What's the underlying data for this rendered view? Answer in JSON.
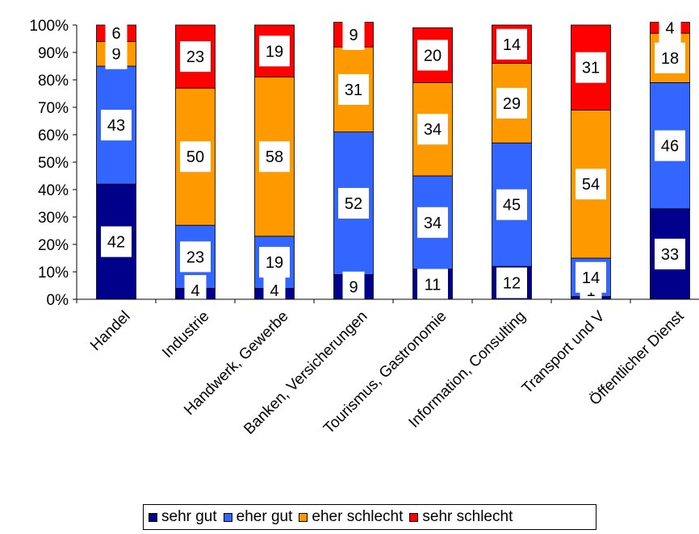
{
  "chart_data": {
    "type": "bar",
    "stacked": true,
    "title": "",
    "xlabel": "",
    "ylabel": "",
    "ylim": [
      0,
      100
    ],
    "yticks": [
      "0%",
      "10%",
      "20%",
      "30%",
      "40%",
      "50%",
      "60%",
      "70%",
      "80%",
      "90%",
      "100%"
    ],
    "categories": [
      "Handel",
      "Industrie",
      "Handwerk, Gewerbe",
      "Banken, Versicherungen",
      "Tourismus, Gastronomie",
      "Information, Consulting",
      "Transport und V",
      "Öffentlicher Dienst"
    ],
    "series": [
      {
        "name": "sehr gut",
        "color": "#00008B",
        "values": [
          42,
          4,
          4,
          9,
          11,
          12,
          1,
          33
        ]
      },
      {
        "name": "eher gut",
        "color": "#3366FF",
        "values": [
          43,
          23,
          19,
          52,
          34,
          45,
          14,
          46
        ]
      },
      {
        "name": "eher schlecht",
        "color": "#FF9900",
        "values": [
          9,
          50,
          58,
          31,
          34,
          29,
          54,
          18
        ]
      },
      {
        "name": "sehr schlecht",
        "color": "#FF0000",
        "values": [
          6,
          23,
          19,
          9,
          20,
          14,
          31,
          4
        ]
      }
    ],
    "legend_position": "bottom",
    "grid": false
  }
}
